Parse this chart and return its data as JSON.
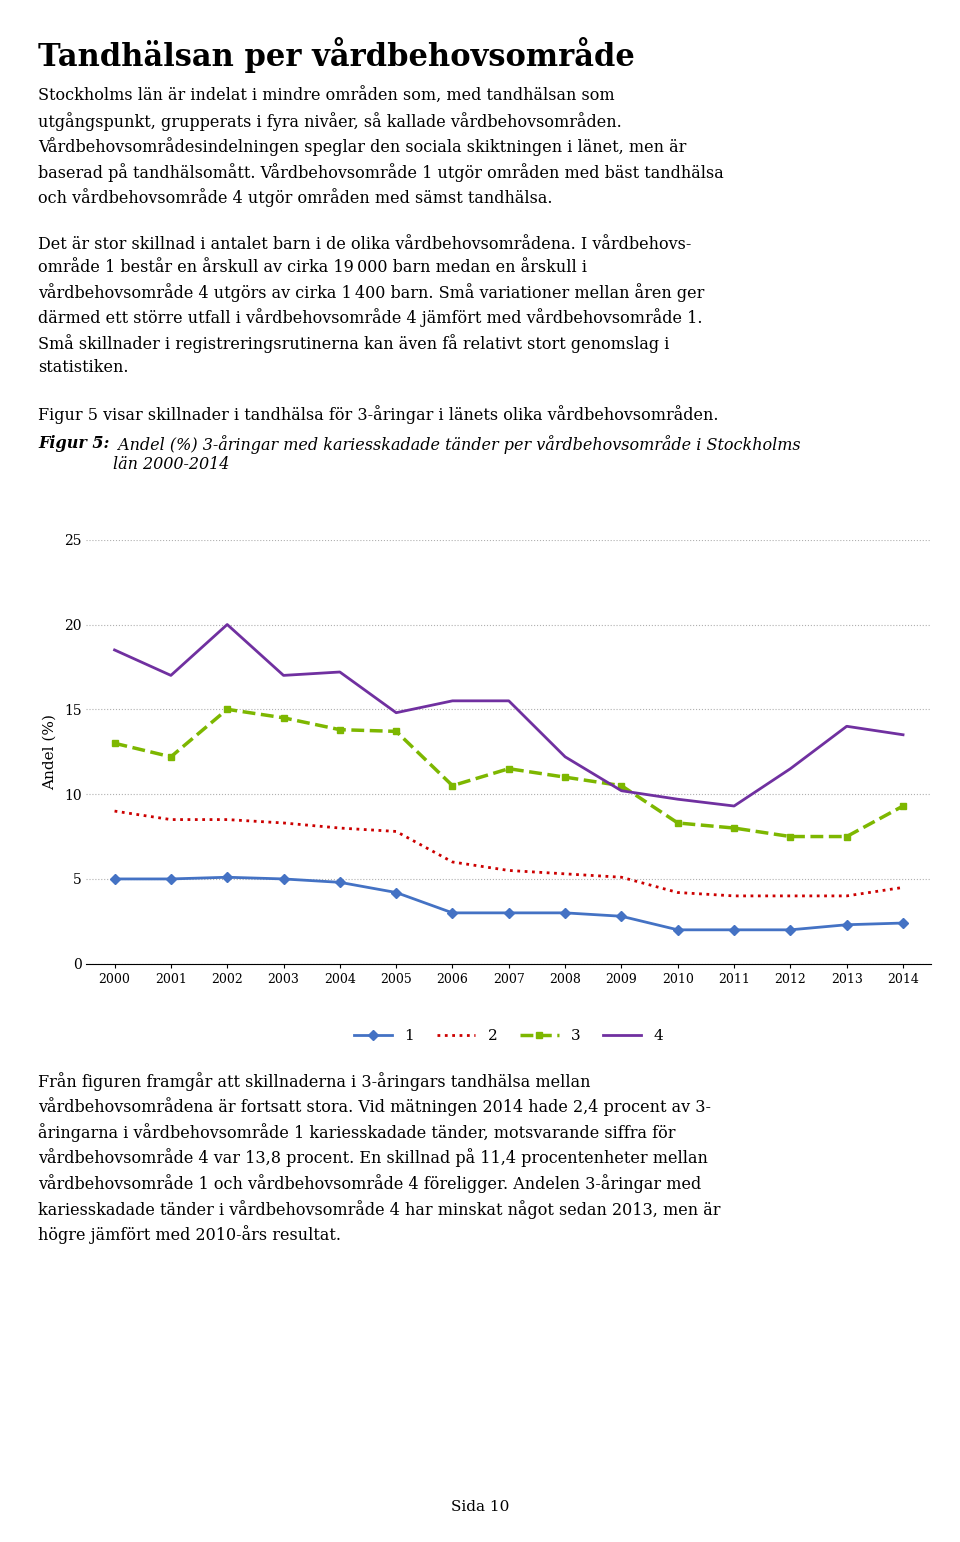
{
  "years": [
    2000,
    2001,
    2002,
    2003,
    2004,
    2005,
    2006,
    2007,
    2008,
    2009,
    2010,
    2011,
    2012,
    2013,
    2014
  ],
  "series1": [
    5.0,
    5.0,
    5.1,
    5.0,
    4.8,
    4.2,
    3.0,
    3.0,
    3.0,
    2.8,
    2.0,
    2.0,
    2.0,
    2.3,
    2.4
  ],
  "series2": [
    9.0,
    8.5,
    8.5,
    8.3,
    8.0,
    7.8,
    6.0,
    5.5,
    5.3,
    5.1,
    4.2,
    4.0,
    4.0,
    4.0,
    4.5
  ],
  "series3": [
    13.0,
    12.2,
    15.0,
    14.5,
    13.8,
    13.7,
    10.5,
    11.5,
    11.0,
    10.5,
    8.3,
    8.0,
    7.5,
    7.5,
    9.3
  ],
  "series4": [
    18.5,
    17.0,
    20.0,
    17.0,
    17.2,
    14.8,
    15.5,
    15.5,
    12.2,
    10.2,
    9.7,
    9.3,
    11.5,
    14.0,
    13.5
  ],
  "color1": "#4472C4",
  "color2": "#CC0000",
  "color3": "#7DB700",
  "color4": "#7030A0",
  "ylim": [
    0,
    25
  ],
  "yticks": [
    0,
    5,
    10,
    15,
    20,
    25
  ],
  "ylabel": "Andel (%)",
  "background_color": "#ffffff",
  "grid_color": "#b0b0b0",
  "title": "Tandhälsan per vårdbehovsområde",
  "page_number": "Sida 10"
}
